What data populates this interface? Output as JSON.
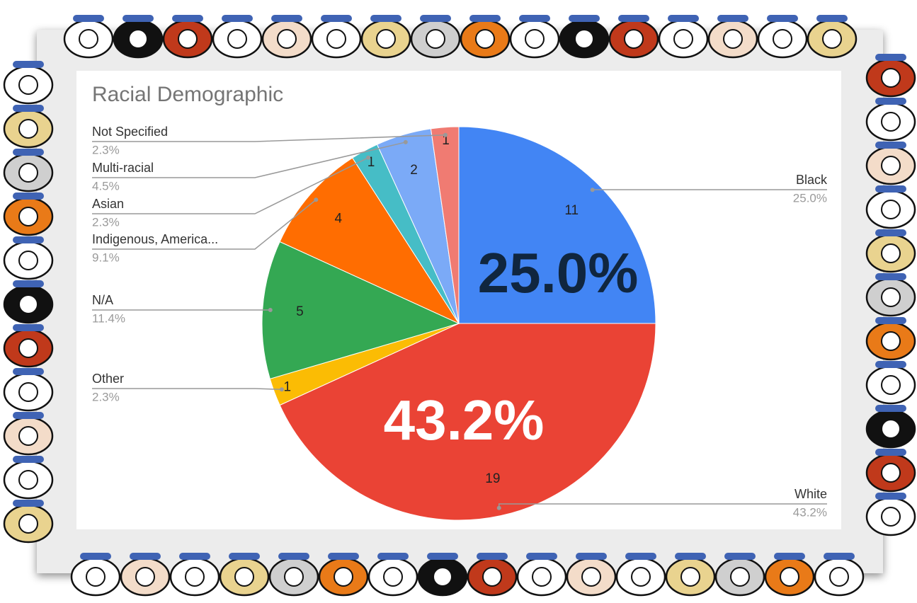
{
  "chart_data": {
    "type": "pie",
    "title": "Racial Demographic",
    "categories": [
      "Black",
      "White",
      "Other",
      "N/A",
      "Indigenous, America...",
      "Asian",
      "Multi-racial",
      "Not Specified"
    ],
    "values": [
      11,
      19,
      1,
      5,
      4,
      1,
      2,
      1
    ],
    "percent_labels": [
      "25.0%",
      "43.2%",
      "2.3%",
      "11.4%",
      "9.1%",
      "2.3%",
      "4.5%",
      "2.3%"
    ],
    "colors": [
      "#4285f4",
      "#ea4335",
      "#fbbc04",
      "#34a853",
      "#ff6d01",
      "#46bdc6",
      "#7baaf7",
      "#f07b72"
    ],
    "annotations": [
      {
        "text": "25.0%",
        "color": "#10263f"
      },
      {
        "text": "43.2%",
        "color": "#ffffff"
      }
    ]
  }
}
